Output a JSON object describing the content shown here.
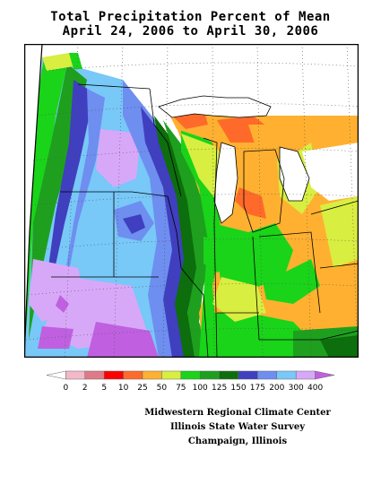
{
  "title": {
    "line1": "Total Precipitation Percent of Mean",
    "line2": "April 24, 2006 to April 30, 2006"
  },
  "legend": {
    "thresholds": [
      "0",
      "2",
      "5",
      "10",
      "25",
      "50",
      "75",
      "100",
      "125",
      "150",
      "175",
      "200",
      "300",
      "400"
    ],
    "colors": [
      "#ffffff",
      "#f5b8c8",
      "#e07a86",
      "#ff0000",
      "#ff6a2a",
      "#ffb030",
      "#d8ee40",
      "#19d419",
      "#1ea01e",
      "#0c6e0c",
      "#3f3fbf",
      "#6e8ef0",
      "#78c8f8",
      "#d8a8f8",
      "#c060e0"
    ]
  },
  "credits": {
    "line1": "Midwestern Regional Climate Center",
    "line2": "Illinois State Water Survey",
    "line3": "Champaign, Illinois"
  }
}
